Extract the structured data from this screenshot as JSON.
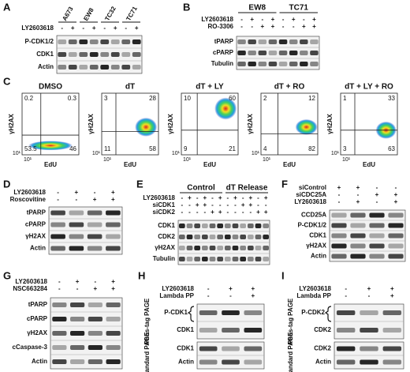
{
  "figure": {
    "panels": [
      {
        "letter": "A",
        "groups": [
          "A673",
          "EW8",
          "TC32",
          "TC71"
        ],
        "treatments": [
          {
            "name": "LY2603618",
            "signs": [
              "-",
              "+",
              "-",
              "+",
              "-",
              "+",
              "-",
              "+"
            ]
          }
        ],
        "sections": [
          {
            "rows": [
              "P-CDK1/2",
              "CDK1",
              "Actin"
            ]
          }
        ]
      },
      {
        "letter": "B",
        "groups": [
          "EW8",
          "TC71"
        ],
        "treatments": [
          {
            "name": "LY2603618",
            "signs": [
              "-",
              "+",
              "-",
              "+",
              "-",
              "+",
              "-",
              "+"
            ]
          },
          {
            "name": "RO-3306",
            "signs": [
              "-",
              "-",
              "+",
              "+",
              "-",
              "-",
              "+",
              "+"
            ]
          }
        ],
        "sections": [
          {
            "rows": [
              "tPARP",
              "cPARP",
              "Tubulin"
            ]
          }
        ]
      },
      {
        "letter": "C",
        "plots": [
          {
            "title": "DMSO",
            "quadrants": [
              0.2,
              0.3,
              53.5,
              46
            ],
            "y_label": "γH2AX",
            "x_label": "EdU",
            "y_tick": "10¹",
            "x_tick": "10¹"
          },
          {
            "title": "dT",
            "quadrants": [
              3,
              28,
              11,
              58
            ],
            "y_label": "γH2AX",
            "x_label": "EdU",
            "y_tick": "10¹",
            "x_tick": "10¹"
          },
          {
            "title": "dT + LY",
            "quadrants": [
              10,
              60,
              9,
              21
            ],
            "y_label": "γH2AX",
            "x_label": "EdU",
            "y_tick": "10¹",
            "x_tick": "10¹"
          },
          {
            "title": "dT + RO",
            "quadrants": [
              2,
              12,
              4,
              82
            ],
            "y_label": "γH2AX",
            "x_label": "EdU",
            "y_tick": "10¹",
            "x_tick": "10¹"
          },
          {
            "title": "dT + LY + RO",
            "quadrants": [
              1,
              33,
              3,
              63
            ],
            "y_label": "γH2AX",
            "x_label": "EdU",
            "y_tick": "10¹",
            "x_tick": "10¹"
          }
        ]
      },
      {
        "letter": "D",
        "treatments": [
          {
            "name": "LY2603618",
            "signs": [
              "-",
              "+",
              "-",
              "+"
            ]
          },
          {
            "name": "Roscovitine",
            "signs": [
              "-",
              "-",
              "+",
              "+"
            ]
          }
        ],
        "sections": [
          {
            "rows": [
              "tPARP",
              "cPARP",
              "γH2AX",
              "Actin"
            ]
          }
        ]
      },
      {
        "letter": "E",
        "groups": [
          "Control",
          "dT Release"
        ],
        "treatments": [
          {
            "name": "LY2603618",
            "signs": [
              "-",
              "+",
              "-",
              "+",
              "-",
              "+",
              "-",
              "+",
              "-",
              "+",
              "-",
              "+"
            ]
          },
          {
            "name": "siCDK1",
            "signs": [
              "-",
              "-",
              "+",
              "+",
              "-",
              "-",
              "-",
              "-",
              "+",
              "+",
              "-",
              "-"
            ]
          },
          {
            "name": "siCDK2",
            "signs": [
              "-",
              "-",
              "-",
              "-",
              "+",
              "+",
              "-",
              "-",
              "-",
              "-",
              "+",
              "+"
            ]
          }
        ],
        "sections": [
          {
            "rows": [
              "CDK1",
              "CDK2",
              "γH2AX",
              "Tubulin"
            ]
          }
        ]
      },
      {
        "letter": "F",
        "treatments": [
          {
            "name": "siControl",
            "signs": [
              "+",
              "+",
              "-",
              "-"
            ]
          },
          {
            "name": "siCDC25A",
            "signs": [
              "-",
              "-",
              "+",
              "+"
            ]
          },
          {
            "name": "LY2603618",
            "signs": [
              "-",
              "+",
              "-",
              "+"
            ]
          }
        ],
        "sections": [
          {
            "rows": [
              "CCD25A",
              "P-CDK1/2",
              "CDK1",
              "γH2AX",
              "Actin"
            ]
          }
        ]
      },
      {
        "letter": "G",
        "treatments": [
          {
            "name": "LY2603618",
            "signs": [
              "-",
              "+",
              "-",
              "+"
            ]
          },
          {
            "name": "NSC663284",
            "signs": [
              "-",
              "-",
              "+",
              "+"
            ]
          }
        ],
        "sections": [
          {
            "rows": [
              "tPARP",
              "cPARP",
              "γH2AX",
              "cCaspase-3",
              "Actin"
            ]
          }
        ]
      },
      {
        "letter": "H",
        "treatments": [
          {
            "name": "LY2603618",
            "signs": [
              "-",
              "+",
              "+"
            ]
          },
          {
            "name": "Lambda PP",
            "signs": [
              "-",
              "-",
              "+"
            ]
          }
        ],
        "sections": [
          {
            "label": "Phos-tag PAGE",
            "rows": [
              "P-CDK1",
              "CDK1"
            ]
          },
          {
            "label": "Standard PAGE",
            "rows": [
              "CDK1",
              "Actin"
            ]
          }
        ]
      },
      {
        "letter": "I",
        "treatments": [
          {
            "name": "LY2603618",
            "signs": [
              "-",
              "+",
              "+"
            ]
          },
          {
            "name": "Lambda PP",
            "signs": [
              "-",
              "-",
              "+"
            ]
          }
        ],
        "sections": [
          {
            "label": "Phos-tag PAGE",
            "rows": [
              "P-CDK2",
              "CDK2"
            ]
          },
          {
            "label": "Standard PAGE",
            "rows": [
              "CDK2",
              "Actin"
            ]
          }
        ]
      }
    ]
  }
}
